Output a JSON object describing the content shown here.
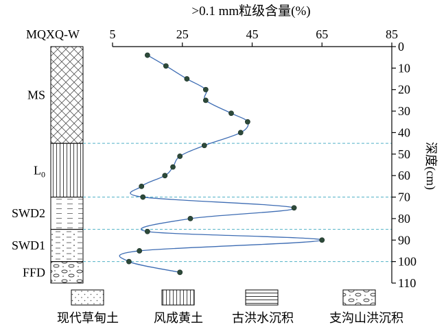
{
  "chart_data": {
    "type": "line",
    "title": ">0.1 mm粒级含量(%)",
    "profile_label": "MQXQ-W",
    "xlabel": ">0.1 mm粒级含量(%)",
    "ylabel": "深度(cm)",
    "xlim": [
      5,
      85
    ],
    "ylim": [
      0,
      110
    ],
    "x_ticks": [
      5,
      25,
      45,
      65,
      85
    ],
    "y_ticks": [
      0,
      10,
      20,
      30,
      40,
      50,
      60,
      70,
      80,
      90,
      100,
      110
    ],
    "y_inverted": true,
    "series": [
      {
        "points": [
          {
            "x": 15.0,
            "y": 4
          },
          {
            "x": 20.3,
            "y": 9
          },
          {
            "x": 26.3,
            "y": 15
          },
          {
            "x": 31.7,
            "y": 20
          },
          {
            "x": 31.7,
            "y": 25
          },
          {
            "x": 39.0,
            "y": 31
          },
          {
            "x": 43.7,
            "y": 35
          },
          {
            "x": 41.7,
            "y": 40
          },
          {
            "x": 31.3,
            "y": 46
          },
          {
            "x": 24.3,
            "y": 51
          },
          {
            "x": 22.3,
            "y": 56
          },
          {
            "x": 20.0,
            "y": 60
          },
          {
            "x": 13.3,
            "y": 65
          },
          {
            "x": 13.7,
            "y": 70
          },
          {
            "x": 57.0,
            "y": 75
          },
          {
            "x": 27.3,
            "y": 80
          },
          {
            "x": 15.0,
            "y": 86
          },
          {
            "x": 65.0,
            "y": 90
          },
          {
            "x": 12.7,
            "y": 95
          },
          {
            "x": 9.7,
            "y": 100
          },
          {
            "x": 24.3,
            "y": 105
          }
        ]
      }
    ],
    "boundaries": [
      45,
      70,
      85,
      100
    ],
    "layers": [
      {
        "label": "MS",
        "top": 0,
        "bottom": 45,
        "pattern": "crosshatch"
      },
      {
        "label": "L",
        "sub": "0",
        "top": 45,
        "bottom": 70,
        "pattern": "vertical"
      },
      {
        "label": "SWD2",
        "top": 70,
        "bottom": 85,
        "pattern": "dash"
      },
      {
        "label": "SWD1",
        "top": 85,
        "bottom": 100,
        "pattern": "dash-dots"
      },
      {
        "label": "FFD",
        "top": 100,
        "bottom": 110,
        "pattern": "ovals"
      }
    ],
    "legend": [
      {
        "label": "现代草甸土",
        "pattern": "dots"
      },
      {
        "label": "风成黄土",
        "pattern": "vertical"
      },
      {
        "label": "古洪水沉积",
        "pattern": "horizontal"
      },
      {
        "label": "支沟山洪沉积",
        "pattern": "ovals"
      }
    ],
    "colors": {
      "line": "#3d6cb3",
      "marker_fill": "#2d4a3a",
      "marker_stroke": "#1b2f26",
      "boundary": "#4fb0c6",
      "axis": "#000000"
    },
    "grid": false,
    "legend_position": "bottom"
  }
}
